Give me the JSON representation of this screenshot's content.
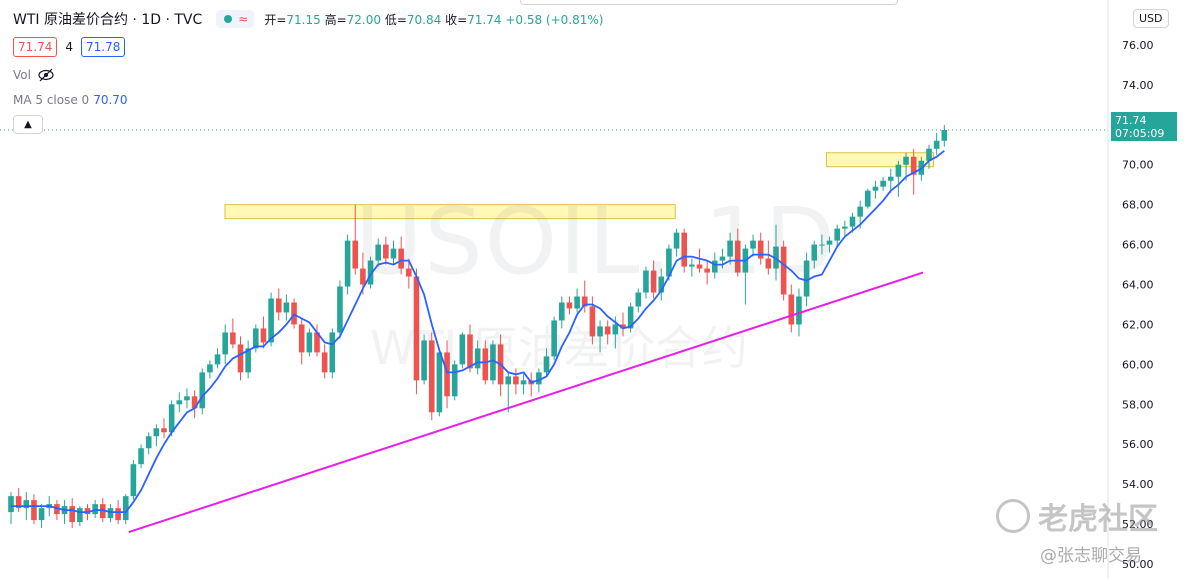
{
  "header": {
    "symbol_title": "WTI 原油差价合约 · 1D · TVC",
    "open_label": "开=",
    "open": "71.15",
    "high_label": "高=",
    "high": "72.00",
    "low_label": "低=",
    "low": "70.84",
    "close_label": "收=",
    "close": "71.74",
    "change": "+0.58 (+0.81%)"
  },
  "sell_price": "71.74",
  "spread": "4",
  "buy_price": "71.78",
  "vol_label": "Vol",
  "ma": {
    "label": "MA 5 close 0",
    "value": "70.70"
  },
  "currency": "USD",
  "last_price": {
    "price": "71.74",
    "countdown": "07:05:09"
  },
  "watermark": {
    "symbol": "USOIL, 1D",
    "name": "WTI 原油差价合约"
  },
  "corner_brand": "老虎社区",
  "corner_author": "@张志聊交易",
  "colors": {
    "up": "#26a69a",
    "down": "#ef5350",
    "ma": "#2962ff",
    "trendline": "#e91ee9",
    "zone": "#fff59d",
    "zone_border": "#e0c040"
  },
  "chart_data": {
    "type": "candlestick",
    "y_ticks": [
      "76.00",
      "74.00",
      "72.00",
      "70.00",
      "68.00",
      "66.00",
      "64.00",
      "62.00",
      "60.00",
      "58.00",
      "56.00",
      "54.00",
      "52.00",
      "50.00"
    ],
    "ylim": [
      49.5,
      77.5
    ],
    "candles": [
      [
        52.6,
        53.6,
        52.0,
        53.4
      ],
      [
        53.4,
        53.8,
        52.6,
        52.8
      ],
      [
        52.8,
        53.6,
        52.2,
        53.2
      ],
      [
        53.2,
        53.5,
        52.0,
        52.2
      ],
      [
        52.2,
        53.0,
        51.8,
        52.8
      ],
      [
        52.8,
        53.4,
        52.4,
        53.0
      ],
      [
        53.0,
        53.2,
        52.2,
        52.5
      ],
      [
        52.5,
        53.2,
        52.0,
        52.9
      ],
      [
        52.9,
        53.3,
        51.8,
        52.1
      ],
      [
        52.1,
        52.9,
        51.9,
        52.8
      ],
      [
        52.8,
        53.0,
        52.2,
        52.5
      ],
      [
        52.5,
        53.2,
        52.3,
        53.0
      ],
      [
        53.0,
        53.3,
        52.1,
        52.3
      ],
      [
        52.3,
        53.0,
        52.1,
        52.8
      ],
      [
        52.8,
        53.2,
        52.0,
        52.2
      ],
      [
        52.2,
        53.5,
        52.0,
        53.4
      ],
      [
        53.4,
        55.2,
        53.2,
        55.0
      ],
      [
        55.0,
        56.0,
        54.8,
        55.8
      ],
      [
        55.8,
        56.6,
        55.5,
        56.4
      ],
      [
        56.4,
        57.0,
        55.9,
        56.8
      ],
      [
        56.8,
        57.3,
        56.3,
        56.6
      ],
      [
        56.6,
        58.2,
        56.4,
        58.0
      ],
      [
        58.0,
        58.6,
        57.6,
        58.2
      ],
      [
        58.2,
        58.8,
        57.8,
        58.4
      ],
      [
        58.4,
        58.7,
        57.3,
        57.8
      ],
      [
        57.8,
        59.8,
        57.5,
        59.6
      ],
      [
        59.6,
        60.2,
        59.3,
        60.0
      ],
      [
        60.0,
        60.8,
        59.8,
        60.5
      ],
      [
        60.5,
        62.0,
        60.0,
        61.6
      ],
      [
        61.6,
        62.3,
        60.8,
        61.0
      ],
      [
        61.0,
        61.4,
        59.2,
        59.6
      ],
      [
        59.6,
        61.2,
        59.3,
        60.8
      ],
      [
        60.8,
        62.0,
        60.6,
        61.8
      ],
      [
        61.8,
        62.4,
        60.8,
        61.1
      ],
      [
        61.1,
        63.6,
        60.9,
        63.3
      ],
      [
        63.3,
        63.8,
        62.2,
        62.6
      ],
      [
        62.6,
        63.5,
        62.2,
        63.1
      ],
      [
        63.1,
        63.3,
        61.8,
        62.0
      ],
      [
        62.0,
        62.3,
        60.0,
        60.6
      ],
      [
        60.6,
        61.8,
        60.4,
        61.6
      ],
      [
        61.6,
        62.0,
        60.4,
        60.6
      ],
      [
        60.6,
        61.0,
        59.3,
        59.6
      ],
      [
        59.6,
        61.8,
        59.3,
        61.6
      ],
      [
        61.6,
        64.2,
        61.3,
        63.9
      ],
      [
        63.9,
        66.5,
        63.5,
        66.2
      ],
      [
        66.2,
        68.0,
        64.5,
        64.8
      ],
      [
        64.8,
        65.6,
        63.5,
        64.0
      ],
      [
        64.0,
        65.4,
        63.8,
        65.2
      ],
      [
        65.2,
        66.3,
        64.9,
        66.0
      ],
      [
        66.0,
        66.4,
        65.0,
        65.3
      ],
      [
        65.3,
        66.2,
        65.0,
        65.8
      ],
      [
        65.8,
        66.4,
        64.5,
        64.8
      ],
      [
        64.8,
        65.3,
        63.8,
        64.4
      ],
      [
        64.4,
        64.8,
        58.5,
        59.2
      ],
      [
        59.2,
        61.5,
        59.0,
        61.2
      ],
      [
        61.2,
        61.6,
        57.2,
        57.6
      ],
      [
        57.6,
        60.8,
        57.4,
        60.6
      ],
      [
        60.6,
        61.2,
        57.8,
        58.4
      ],
      [
        58.4,
        60.2,
        58.2,
        60.0
      ],
      [
        60.0,
        61.6,
        59.8,
        61.5
      ],
      [
        61.5,
        62.0,
        59.6,
        59.8
      ],
      [
        59.8,
        61.2,
        59.5,
        60.8
      ],
      [
        60.8,
        61.2,
        59.0,
        59.2
      ],
      [
        59.2,
        61.2,
        59.0,
        61.0
      ],
      [
        61.0,
        61.5,
        58.4,
        59.0
      ],
      [
        59.0,
        59.6,
        57.6,
        59.4
      ],
      [
        59.4,
        59.8,
        58.5,
        59.0
      ],
      [
        59.0,
        59.5,
        58.5,
        59.2
      ],
      [
        59.2,
        59.6,
        58.4,
        59.0
      ],
      [
        59.0,
        59.8,
        58.6,
        59.6
      ],
      [
        59.6,
        60.8,
        59.4,
        60.4
      ],
      [
        60.4,
        62.4,
        60.2,
        62.2
      ],
      [
        62.2,
        63.4,
        61.8,
        63.1
      ],
      [
        63.1,
        63.4,
        62.5,
        62.8
      ],
      [
        62.8,
        63.8,
        62.6,
        63.4
      ],
      [
        63.4,
        64.2,
        62.6,
        62.9
      ],
      [
        62.9,
        63.4,
        61.0,
        61.4
      ],
      [
        61.4,
        62.2,
        60.6,
        61.9
      ],
      [
        61.9,
        62.2,
        61.0,
        61.5
      ],
      [
        61.5,
        62.4,
        60.8,
        62.0
      ],
      [
        62.0,
        62.6,
        61.4,
        61.8
      ],
      [
        61.8,
        63.1,
        61.6,
        62.9
      ],
      [
        62.9,
        63.8,
        62.6,
        63.6
      ],
      [
        63.6,
        64.9,
        63.3,
        64.7
      ],
      [
        64.7,
        65.2,
        63.3,
        63.6
      ],
      [
        63.6,
        64.8,
        63.2,
        64.4
      ],
      [
        64.4,
        66.0,
        64.2,
        65.8
      ],
      [
        65.8,
        66.8,
        65.4,
        66.6
      ],
      [
        66.6,
        66.8,
        64.6,
        64.9
      ],
      [
        64.9,
        65.3,
        64.4,
        65.0
      ],
      [
        65.0,
        65.8,
        64.6,
        64.8
      ],
      [
        64.8,
        65.2,
        64.0,
        64.6
      ],
      [
        64.6,
        65.6,
        64.3,
        65.2
      ],
      [
        65.2,
        65.8,
        64.8,
        65.4
      ],
      [
        65.4,
        66.6,
        65.0,
        66.2
      ],
      [
        66.2,
        66.8,
        64.4,
        64.6
      ],
      [
        64.6,
        66.0,
        63.0,
        65.8
      ],
      [
        65.8,
        66.5,
        65.4,
        66.2
      ],
      [
        66.2,
        66.6,
        65.0,
        65.3
      ],
      [
        65.3,
        66.2,
        64.5,
        64.8
      ],
      [
        64.8,
        67.0,
        64.2,
        65.9
      ],
      [
        65.9,
        66.2,
        63.2,
        63.5
      ],
      [
        63.5,
        64.0,
        61.6,
        62.0
      ],
      [
        62.0,
        63.8,
        61.4,
        63.4
      ],
      [
        63.4,
        65.6,
        62.9,
        65.2
      ],
      [
        65.2,
        66.2,
        64.8,
        66.0
      ],
      [
        66.0,
        66.5,
        65.5,
        66.0
      ],
      [
        66.0,
        66.4,
        65.6,
        66.2
      ],
      [
        66.2,
        67.0,
        65.9,
        66.8
      ],
      [
        66.8,
        67.2,
        66.4,
        66.9
      ],
      [
        66.9,
        67.6,
        66.6,
        67.4
      ],
      [
        67.4,
        68.2,
        66.8,
        67.9
      ],
      [
        67.9,
        68.8,
        67.8,
        68.7
      ],
      [
        68.7,
        69.2,
        68.3,
        68.9
      ],
      [
        68.9,
        69.4,
        68.7,
        69.2
      ],
      [
        69.2,
        69.8,
        68.6,
        69.4
      ],
      [
        69.4,
        70.2,
        68.4,
        70.0
      ],
      [
        70.0,
        70.6,
        69.2,
        70.4
      ],
      [
        70.4,
        70.8,
        68.5,
        69.5
      ],
      [
        69.5,
        70.4,
        69.2,
        70.2
      ],
      [
        70.2,
        71.0,
        69.8,
        70.8
      ],
      [
        70.8,
        71.6,
        70.5,
        71.2
      ],
      [
        71.2,
        72.0,
        70.9,
        71.74
      ]
    ],
    "ma5": [
      52.9,
      52.9,
      52.9,
      52.9,
      52.9,
      52.9,
      52.8,
      52.7,
      52.7,
      52.6,
      52.6,
      52.7,
      52.7,
      52.6,
      52.6,
      52.6,
      53.1,
      53.7,
      54.5,
      55.3,
      56.0,
      56.6,
      57.1,
      57.6,
      57.8,
      58.4,
      58.8,
      59.3,
      59.9,
      60.3,
      60.5,
      60.7,
      60.9,
      60.9,
      61.3,
      61.6,
      62.0,
      62.5,
      62.3,
      62.1,
      61.6,
      61.1,
      61.0,
      61.4,
      62.2,
      63.0,
      63.8,
      64.5,
      65.0,
      65.1,
      65.0,
      65.2,
      65.2,
      64.4,
      63.5,
      62.0,
      60.7,
      59.6,
      59.6,
      59.7,
      59.9,
      60.1,
      60.1,
      60.2,
      60.0,
      59.6,
      59.5,
      59.6,
      59.1,
      59.2,
      59.4,
      60.0,
      60.9,
      61.6,
      62.5,
      63.0,
      63.0,
      62.8,
      62.4,
      62.1,
      61.8,
      61.9,
      62.3,
      62.8,
      63.2,
      63.7,
      64.4,
      65.2,
      65.4,
      65.4,
      65.3,
      65.2,
      65.0,
      65.0,
      65.2,
      65.2,
      65.2,
      65.5,
      65.5,
      65.5,
      65.3,
      65.0,
      64.7,
      64.3,
      64.2,
      64.4,
      64.5,
      65.2,
      65.9,
      66.4,
      66.7,
      67.0,
      67.4,
      67.8,
      68.2,
      68.7,
      69.0,
      69.4,
      69.6,
      69.8,
      70.2,
      70.4,
      70.7
    ],
    "zones": [
      {
        "from_bar": 58,
        "to_bar": 180,
        "low": 67.3,
        "high": 68.0
      },
      {
        "from_bar": 221,
        "to_bar": 250,
        "low": 69.9,
        "high": 70.6
      }
    ],
    "trendline": {
      "from_bar": 31,
      "from_price": 51.6,
      "to_bar": 240,
      "to_price": 64.6
    },
    "last_price": 71.74,
    "gridline": "off",
    "legend": "top-left"
  }
}
